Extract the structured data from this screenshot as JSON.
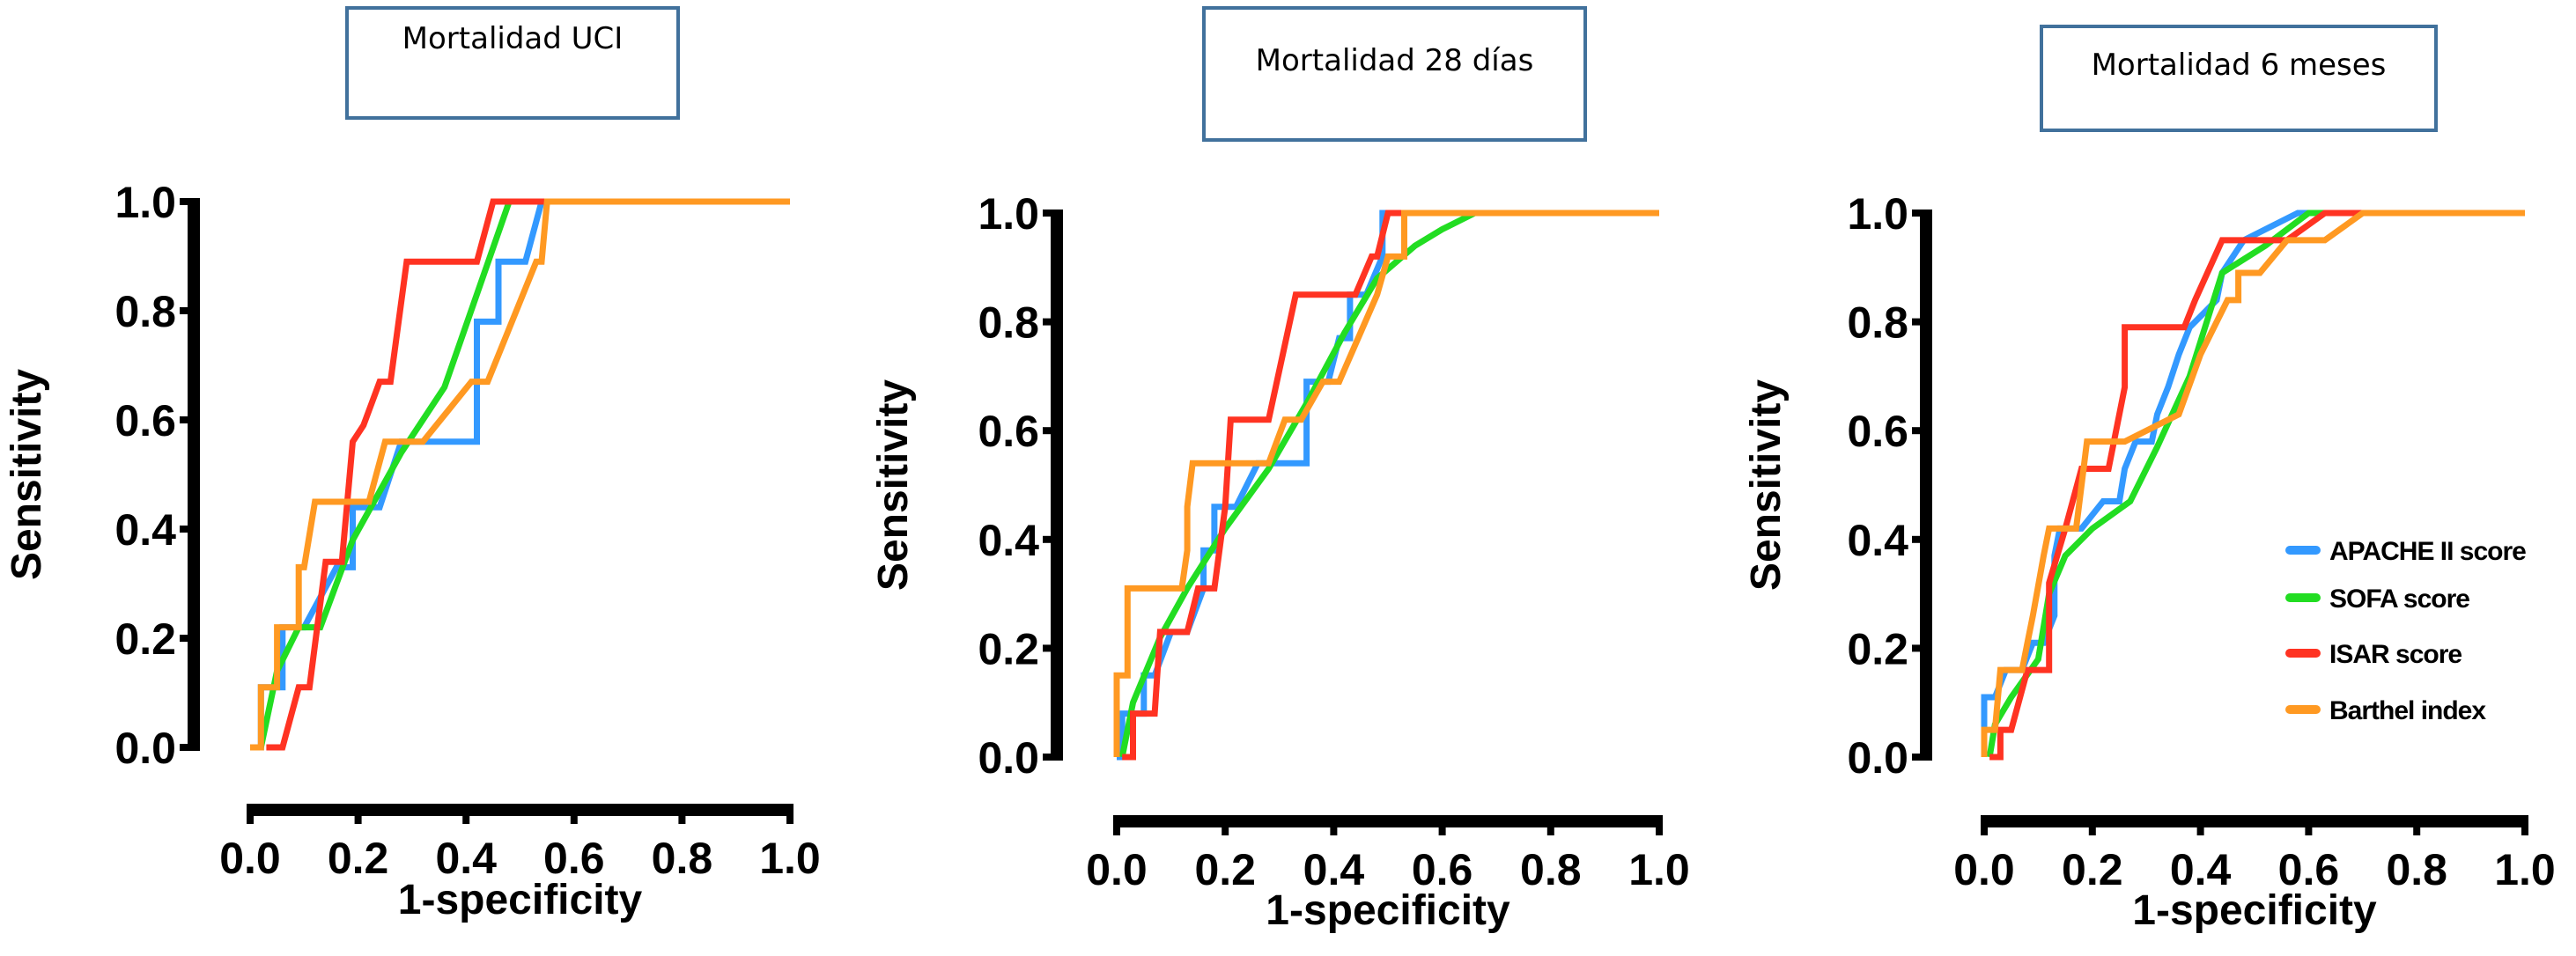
{
  "chart_data": [
    {
      "type": "line",
      "title": "Mortalidad UCI",
      "xlabel": "1-specificity",
      "ylabel": "Sensitivity",
      "xlim": [
        0,
        1
      ],
      "ylim": [
        0,
        1
      ],
      "xticks": [
        "0.0",
        "0.2",
        "0.4",
        "0.6",
        "0.8",
        "1.0"
      ],
      "yticks": [
        "0.0",
        "0.2",
        "0.4",
        "0.6",
        "0.8",
        "1.0"
      ],
      "grid": false,
      "legend": null,
      "series": [
        {
          "name": "APACHE II score",
          "color": "#3399FF",
          "x": [
            0,
            0.02,
            0.02,
            0.06,
            0.06,
            0.1,
            0.16,
            0.19,
            0.19,
            0.24,
            0.28,
            0.42,
            0.42,
            0.46,
            0.46,
            0.51,
            0.54,
            1
          ],
          "y": [
            0,
            0,
            0.11,
            0.11,
            0.22,
            0.22,
            0.33,
            0.33,
            0.44,
            0.44,
            0.56,
            0.56,
            0.78,
            0.78,
            0.89,
            0.89,
            1.0,
            1
          ]
        },
        {
          "name": "SOFA score",
          "color": "#22DD22",
          "x": [
            0.02,
            0.05,
            0.09,
            0.13,
            0.19,
            0.28,
            0.36,
            0.48,
            1
          ],
          "y": [
            0,
            0.14,
            0.22,
            0.22,
            0.38,
            0.54,
            0.66,
            1.0,
            1
          ]
        },
        {
          "name": "ISAR score",
          "color": "#FF3322",
          "x": [
            0.03,
            0.06,
            0.09,
            0.11,
            0.14,
            0.17,
            0.19,
            0.21,
            0.24,
            0.26,
            0.29,
            0.42,
            0.45,
            0.54,
            1
          ],
          "y": [
            0,
            0,
            0.11,
            0.11,
            0.34,
            0.34,
            0.56,
            0.59,
            0.67,
            0.67,
            0.89,
            0.89,
            1.0,
            1.0,
            1
          ]
        },
        {
          "name": "Barthel index",
          "color": "#FF9922",
          "x": [
            0,
            0.02,
            0.02,
            0.05,
            0.05,
            0.09,
            0.09,
            0.1,
            0.12,
            0.22,
            0.25,
            0.32,
            0.41,
            0.44,
            0.53,
            0.54,
            0.55,
            1
          ],
          "y": [
            0,
            0,
            0.11,
            0.11,
            0.22,
            0.22,
            0.33,
            0.33,
            0.45,
            0.45,
            0.56,
            0.56,
            0.67,
            0.67,
            0.89,
            0.89,
            1.0,
            1
          ]
        }
      ]
    },
    {
      "type": "line",
      "title": "Mortalidad 28 días",
      "xlabel": "1-specificity",
      "ylabel": "Sensitivity",
      "xlim": [
        0,
        1
      ],
      "ylim": [
        0,
        1
      ],
      "xticks": [
        "0.0",
        "0.2",
        "0.4",
        "0.6",
        "0.8",
        "1.0"
      ],
      "yticks": [
        "0.0",
        "0.2",
        "0.4",
        "0.6",
        "0.8",
        "1.0"
      ],
      "grid": false,
      "legend": null,
      "series": [
        {
          "name": "APACHE II score",
          "color": "#3399FF",
          "x": [
            0,
            0.01,
            0.01,
            0.05,
            0.05,
            0.07,
            0.1,
            0.13,
            0.16,
            0.16,
            0.18,
            0.18,
            0.22,
            0.26,
            0.35,
            0.35,
            0.39,
            0.41,
            0.43,
            0.43,
            0.46,
            0.49,
            0.49,
            1
          ],
          "y": [
            0,
            0,
            0.08,
            0.08,
            0.15,
            0.15,
            0.23,
            0.23,
            0.31,
            0.38,
            0.38,
            0.46,
            0.46,
            0.54,
            0.54,
            0.69,
            0.69,
            0.77,
            0.77,
            0.85,
            0.85,
            0.92,
            1.0,
            1
          ]
        },
        {
          "name": "SOFA score",
          "color": "#22DD22",
          "x": [
            0.01,
            0.03,
            0.08,
            0.13,
            0.2,
            0.28,
            0.35,
            0.42,
            0.48,
            0.55,
            0.6,
            0.66,
            1
          ],
          "y": [
            0,
            0.1,
            0.22,
            0.31,
            0.42,
            0.53,
            0.65,
            0.78,
            0.88,
            0.94,
            0.97,
            1.0,
            1
          ]
        },
        {
          "name": "ISAR score",
          "color": "#FF3322",
          "x": [
            0.01,
            0.03,
            0.03,
            0.07,
            0.08,
            0.13,
            0.15,
            0.18,
            0.2,
            0.21,
            0.28,
            0.33,
            0.44,
            0.47,
            0.48,
            0.5,
            1
          ],
          "y": [
            0,
            0,
            0.08,
            0.08,
            0.23,
            0.23,
            0.31,
            0.31,
            0.46,
            0.62,
            0.62,
            0.85,
            0.85,
            0.92,
            0.92,
            1.0,
            1
          ]
        },
        {
          "name": "Barthel index",
          "color": "#FF9922",
          "x": [
            0,
            0,
            0.02,
            0.02,
            0.12,
            0.13,
            0.13,
            0.14,
            0.28,
            0.31,
            0.34,
            0.38,
            0.41,
            0.48,
            0.5,
            0.53,
            0.53,
            1
          ],
          "y": [
            0,
            0.15,
            0.15,
            0.31,
            0.31,
            0.38,
            0.46,
            0.54,
            0.54,
            0.62,
            0.62,
            0.69,
            0.69,
            0.85,
            0.92,
            0.92,
            1.0,
            1
          ]
        }
      ]
    },
    {
      "type": "line",
      "title": "Mortalidad 6 meses",
      "xlabel": "1-specificity",
      "ylabel": "Sensitivity",
      "xlim": [
        0,
        1
      ],
      "ylim": [
        0,
        1
      ],
      "xticks": [
        "0.0",
        "0.2",
        "0.4",
        "0.6",
        "0.8",
        "1.0"
      ],
      "yticks": [
        "0.0",
        "0.2",
        "0.4",
        "0.6",
        "0.8",
        "1.0"
      ],
      "grid": false,
      "legend": "right",
      "series": [
        {
          "name": "APACHE II score",
          "color": "#3399FF",
          "x": [
            0,
            0,
            0.02,
            0.04,
            0.07,
            0.09,
            0.11,
            0.13,
            0.13,
            0.14,
            0.18,
            0.22,
            0.25,
            0.26,
            0.28,
            0.31,
            0.32,
            0.34,
            0.36,
            0.38,
            0.43,
            0.44,
            0.48,
            0.58,
            1
          ],
          "y": [
            0,
            0.11,
            0.11,
            0.16,
            0.16,
            0.21,
            0.21,
            0.26,
            0.37,
            0.42,
            0.42,
            0.47,
            0.47,
            0.53,
            0.58,
            0.58,
            0.63,
            0.68,
            0.74,
            0.79,
            0.84,
            0.89,
            0.95,
            1.0,
            1
          ]
        },
        {
          "name": "SOFA score",
          "color": "#22DD22",
          "x": [
            0.01,
            0.02,
            0.05,
            0.1,
            0.12,
            0.15,
            0.2,
            0.27,
            0.32,
            0.38,
            0.44,
            0.52,
            0.6,
            1
          ],
          "y": [
            0,
            0.06,
            0.11,
            0.18,
            0.3,
            0.37,
            0.42,
            0.47,
            0.57,
            0.7,
            0.89,
            0.94,
            1.0,
            1
          ]
        },
        {
          "name": "ISAR score",
          "color": "#FF3322",
          "x": [
            0.01,
            0.03,
            0.03,
            0.05,
            0.08,
            0.12,
            0.12,
            0.15,
            0.18,
            0.23,
            0.26,
            0.26,
            0.37,
            0.39,
            0.44,
            0.56,
            0.63,
            1
          ],
          "y": [
            0,
            0,
            0.05,
            0.05,
            0.16,
            0.16,
            0.32,
            0.42,
            0.53,
            0.53,
            0.68,
            0.79,
            0.79,
            0.84,
            0.95,
            0.95,
            1.0,
            1
          ]
        },
        {
          "name": "Barthel index",
          "color": "#FF9922",
          "x": [
            0,
            0,
            0.02,
            0.03,
            0.07,
            0.08,
            0.09,
            0.11,
            0.12,
            0.17,
            0.19,
            0.26,
            0.36,
            0.4,
            0.45,
            0.47,
            0.47,
            0.51,
            0.56,
            0.63,
            0.7,
            1
          ],
          "y": [
            0,
            0.05,
            0.05,
            0.16,
            0.16,
            0.21,
            0.26,
            0.37,
            0.42,
            0.42,
            0.58,
            0.58,
            0.63,
            0.74,
            0.84,
            0.84,
            0.89,
            0.89,
            0.95,
            0.95,
            1.0,
            1
          ]
        }
      ]
    }
  ],
  "legend": {
    "items": [
      {
        "label": "APACHE II score",
        "color": "#3399FF"
      },
      {
        "label": "SOFA score",
        "color": "#22DD22"
      },
      {
        "label": "ISAR score",
        "color": "#FF3322"
      },
      {
        "label": "Barthel index",
        "color": "#FF9922"
      }
    ]
  }
}
